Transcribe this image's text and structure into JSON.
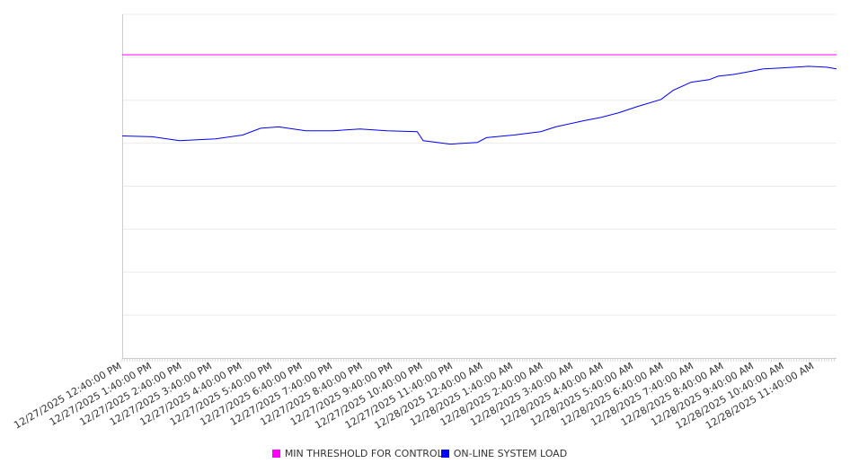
{
  "chart_data": {
    "type": "line",
    "title": "",
    "xlabel": "",
    "ylabel": "",
    "xlim_hours": [
      0,
      23.73
    ],
    "ylim": [
      0,
      8
    ],
    "grid": true,
    "legend_position": "bottom-center",
    "x_tick_labels": [
      "12/27/2025 12:40:00 PM",
      "12/27/2025 1:40:00 PM",
      "12/27/2025 2:40:00 PM",
      "12/27/2025 3:40:00 PM",
      "12/27/2025 4:40:00 PM",
      "12/27/2025 5:40:00 PM",
      "12/27/2025 6:40:00 PM",
      "12/27/2025 7:40:00 PM",
      "12/27/2025 8:40:00 PM",
      "12/27/2025 9:40:00 PM",
      "12/27/2025 10:40:00 PM",
      "12/27/2025 11:40:00 PM",
      "12/28/2025 12:40:00 AM",
      "12/28/2025 1:40:00 AM",
      "12/28/2025 2:40:00 AM",
      "12/28/2025 3:40:00 AM",
      "12/28/2025 4:40:00 AM",
      "12/28/2025 5:40:00 AM",
      "12/28/2025 6:40:00 AM",
      "12/28/2025 7:40:00 AM",
      "12/28/2025 8:40:00 AM",
      "12/28/2025 9:40:00 AM",
      "12/28/2025 10:40:00 AM",
      "12/28/2025 11:40:00 AM"
    ],
    "series": [
      {
        "name": "MIN THRESHOLD FOR CONTROL",
        "color": "#ff00ff",
        "x": [
          0,
          23.73
        ],
        "y": [
          7.06,
          7.06
        ]
      },
      {
        "name": "ON-LINE SYSTEM LOAD",
        "color": "#0000ff",
        "x": [
          0,
          1.0,
          1.9,
          3.1,
          4.0,
          4.6,
          5.2,
          6.1,
          7.0,
          7.9,
          8.8,
          9.8,
          10.0,
          10.9,
          11.8,
          12.1,
          13.0,
          13.9,
          14.4,
          15.3,
          15.9,
          16.5,
          17.1,
          17.9,
          18.3,
          18.9,
          19.5,
          19.8,
          20.3,
          20.7,
          21.3,
          21.9,
          22.8,
          23.4,
          23.73
        ],
        "y": [
          5.17,
          5.15,
          5.06,
          5.1,
          5.19,
          5.35,
          5.38,
          5.29,
          5.29,
          5.33,
          5.29,
          5.27,
          5.06,
          4.98,
          5.02,
          5.13,
          5.19,
          5.27,
          5.38,
          5.52,
          5.6,
          5.71,
          5.85,
          6.02,
          6.23,
          6.42,
          6.48,
          6.56,
          6.6,
          6.65,
          6.73,
          6.75,
          6.79,
          6.77,
          6.73
        ]
      }
    ]
  }
}
